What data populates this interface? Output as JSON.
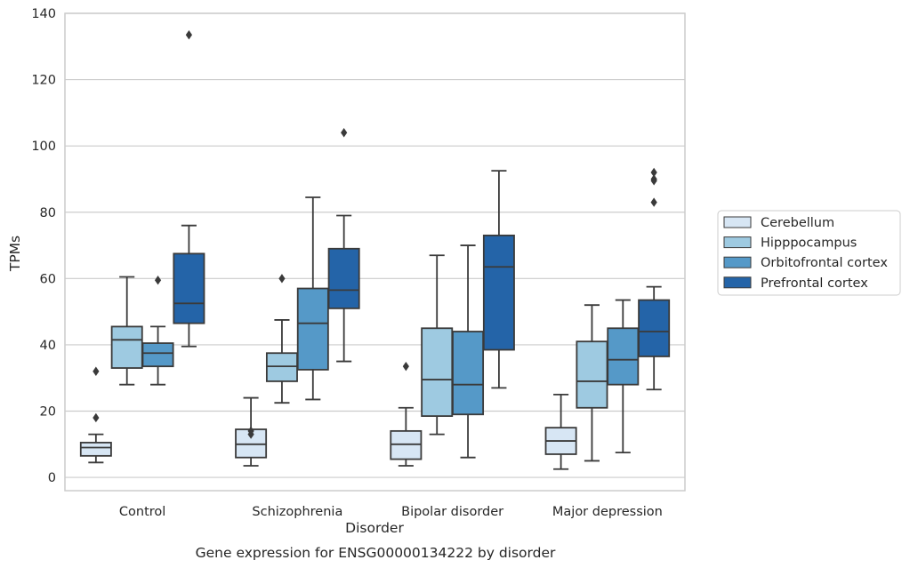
{
  "chart_data": {
    "type": "boxplot",
    "title": "",
    "caption": "Gene expression for ENSG00000134222 by disorder",
    "xlabel": "Disorder",
    "ylabel": "TPMs",
    "ylim": [
      -4,
      140
    ],
    "yticks": [
      0,
      20,
      40,
      60,
      80,
      100,
      120,
      140
    ],
    "grid": "horizontal",
    "legend_position": "right",
    "categories": [
      "Control",
      "Schizophrenia",
      "Bipolar disorder",
      "Major depression"
    ],
    "series": [
      {
        "name": "Cerebellum",
        "color": "#d7e6f4",
        "boxes": [
          {
            "min": 4.5,
            "q1": 6.5,
            "median": 9,
            "q3": 10.5,
            "max": 13,
            "outliers": [
              18,
              32
            ]
          },
          {
            "min": 3.5,
            "q1": 6,
            "median": 10,
            "q3": 14.5,
            "max": 24,
            "outliers": [
              13,
              14
            ]
          },
          {
            "min": 3.5,
            "q1": 5.5,
            "median": 10,
            "q3": 14,
            "max": 21,
            "outliers": [
              33.5
            ]
          },
          {
            "min": 2.5,
            "q1": 7,
            "median": 11,
            "q3": 15,
            "max": 25,
            "outliers": []
          }
        ]
      },
      {
        "name": "Hipppocampus",
        "color": "#9ecae1",
        "boxes": [
          {
            "min": 28,
            "q1": 33,
            "median": 41.5,
            "q3": 45.5,
            "max": 60.5,
            "outliers": []
          },
          {
            "min": 22.5,
            "q1": 29,
            "median": 33.5,
            "q3": 37.5,
            "max": 47.5,
            "outliers": [
              60
            ]
          },
          {
            "min": 13,
            "q1": 18.5,
            "median": 29.5,
            "q3": 45,
            "max": 67,
            "outliers": []
          },
          {
            "min": 5,
            "q1": 21,
            "median": 29,
            "q3": 41,
            "max": 52,
            "outliers": []
          }
        ]
      },
      {
        "name": "Orbitofrontal cortex",
        "color": "#5599c8",
        "boxes": [
          {
            "min": 28,
            "q1": 33.5,
            "median": 37.5,
            "q3": 40.5,
            "max": 45.5,
            "outliers": [
              59.5
            ]
          },
          {
            "min": 23.5,
            "q1": 32.5,
            "median": 46.5,
            "q3": 57,
            "max": 84.5,
            "outliers": []
          },
          {
            "min": 6,
            "q1": 19,
            "median": 28,
            "q3": 44,
            "max": 70,
            "outliers": []
          },
          {
            "min": 7.5,
            "q1": 28,
            "median": 35.5,
            "q3": 45,
            "max": 53.5,
            "outliers": []
          }
        ]
      },
      {
        "name": "Prefrontal cortex",
        "color": "#2464a8",
        "boxes": [
          {
            "min": 39.5,
            "q1": 46.5,
            "median": 52.5,
            "q3": 67.5,
            "max": 76,
            "outliers": [
              133.5
            ]
          },
          {
            "min": 35,
            "q1": 51,
            "median": 56.5,
            "q3": 69,
            "max": 79,
            "outliers": [
              104
            ]
          },
          {
            "min": 27,
            "q1": 38.5,
            "median": 63.5,
            "q3": 73,
            "max": 92.5,
            "outliers": []
          },
          {
            "min": 26.5,
            "q1": 36.5,
            "median": 44,
            "q3": 53.5,
            "max": 57.5,
            "outliers": [
              83,
              89.5,
              90,
              92
            ]
          }
        ]
      }
    ]
  }
}
